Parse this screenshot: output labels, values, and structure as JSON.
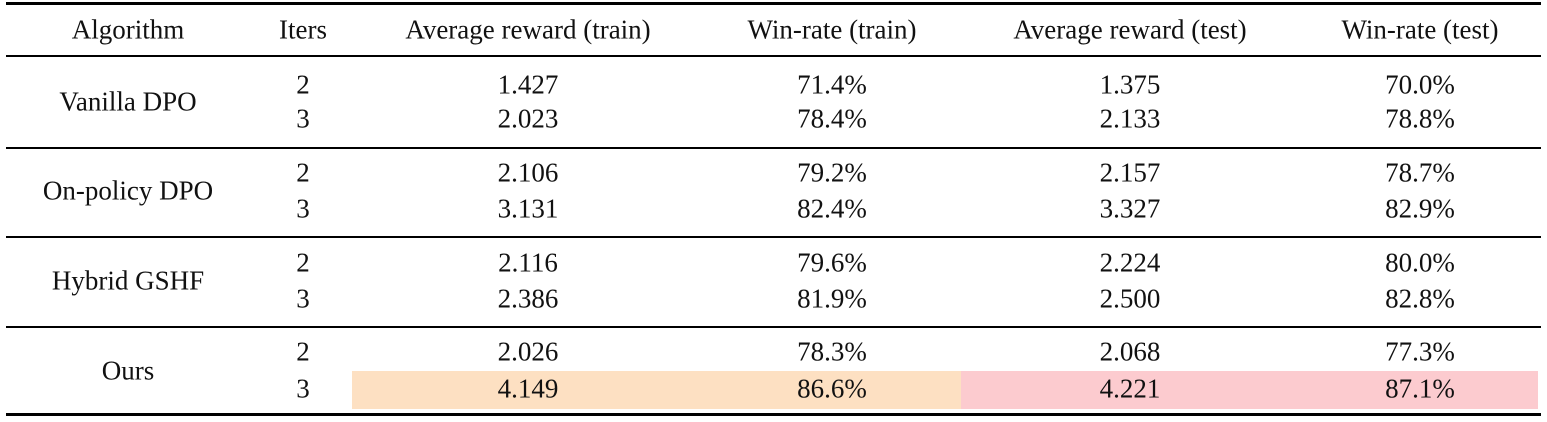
{
  "table": {
    "header": [
      "Algorithm",
      "Iters",
      "Average reward (train)",
      "Win-rate (train)",
      "Average reward (test)",
      "Win-rate (test)"
    ],
    "groups": [
      {
        "algorithm": "Vanilla DPO",
        "rows": [
          [
            "2",
            "1.427",
            "71.4%",
            "1.375",
            "70.0%"
          ],
          [
            "3",
            "2.023",
            "78.4%",
            "2.133",
            "78.8%"
          ]
        ]
      },
      {
        "algorithm": "On-policy DPO",
        "rows": [
          [
            "2",
            "2.106",
            "79.2%",
            "2.157",
            "78.7%"
          ],
          [
            "3",
            "3.131",
            "82.4%",
            "3.327",
            "82.9%"
          ]
        ]
      },
      {
        "algorithm": "Hybrid GSHF",
        "rows": [
          [
            "2",
            "2.116",
            "79.6%",
            "2.224",
            "80.0%"
          ],
          [
            "3",
            "2.386",
            "81.9%",
            "2.500",
            "82.8%"
          ]
        ]
      },
      {
        "algorithm": "Ours",
        "rows": [
          [
            "2",
            "2.026",
            "78.3%",
            "2.068",
            "77.3%"
          ],
          [
            "3",
            "4.149",
            "86.6%",
            "4.221",
            "87.1%"
          ]
        ]
      }
    ]
  }
}
